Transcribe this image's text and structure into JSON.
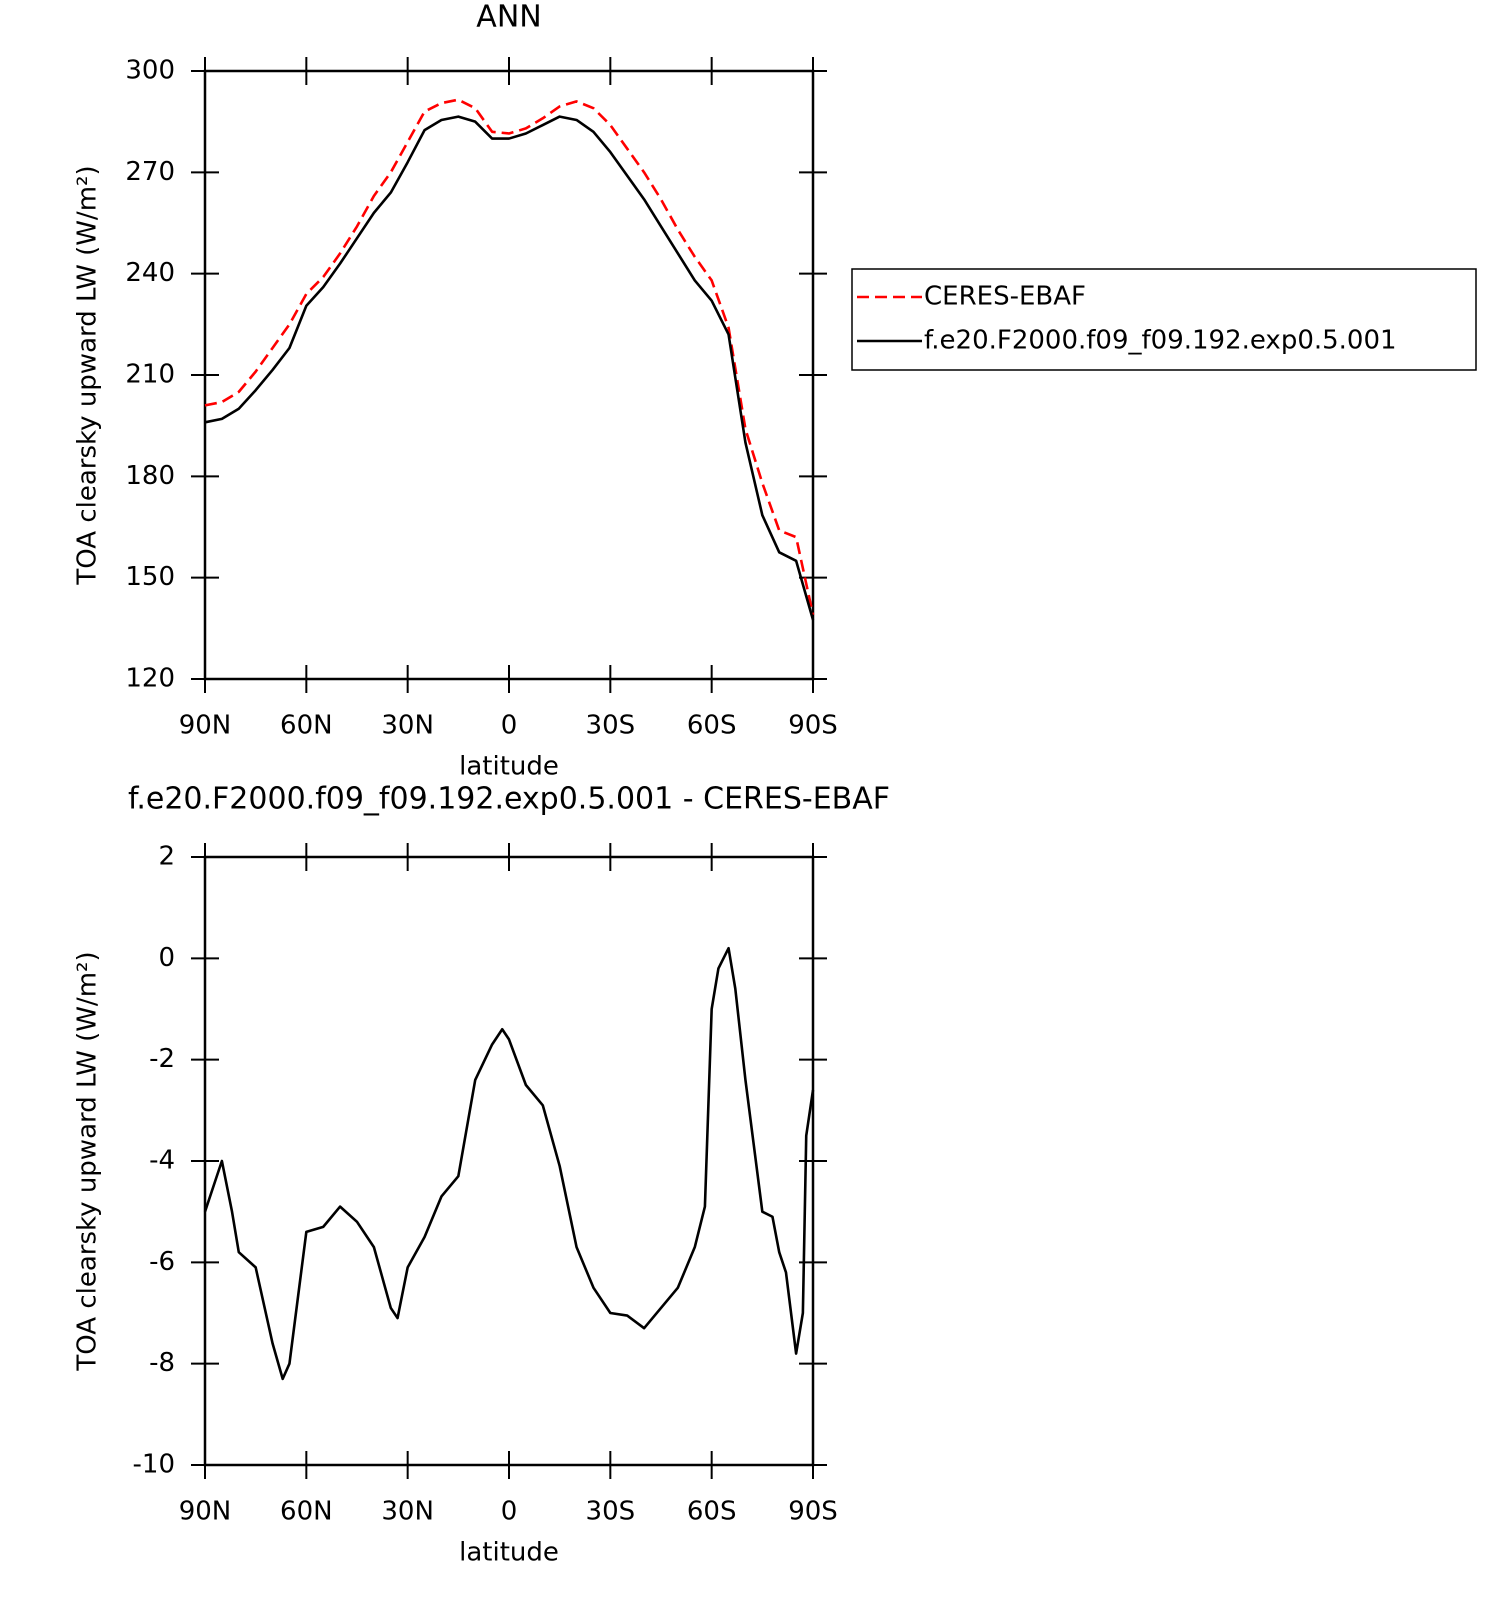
{
  "chart_data": [
    {
      "type": "line",
      "title": "ANN",
      "xlabel": "latitude",
      "ylabel": "TOA clearsky upward LW (W/m²)",
      "x": [
        90,
        85,
        80,
        75,
        70,
        65,
        60,
        55,
        50,
        45,
        40,
        35,
        30,
        25,
        20,
        15,
        10,
        5,
        0,
        -5,
        -10,
        -15,
        -20,
        -25,
        -30,
        -35,
        -40,
        -45,
        -50,
        -55,
        -60,
        -65,
        -70,
        -75,
        -80,
        -85,
        -90
      ],
      "series": [
        {
          "name": "CERES-EBAF",
          "color": "#ff0000",
          "line_style": "dashed",
          "values": [
            201,
            202,
            205,
            211,
            218,
            225,
            234,
            239,
            246,
            254,
            263,
            270,
            279,
            288,
            290.5,
            291.5,
            289,
            282,
            281.5,
            283,
            286,
            289.5,
            291,
            289,
            284,
            277,
            270,
            262,
            253,
            245,
            238,
            224,
            194,
            178,
            164,
            162,
            139
          ]
        },
        {
          "name": "f.e20.F2000.f09_f09.192.exp0.5.001",
          "color": "#000000",
          "line_style": "solid",
          "values": [
            196,
            197,
            200,
            205.5,
            211.5,
            218,
            230.5,
            236,
            243,
            250.5,
            258,
            264,
            273,
            282.5,
            285.5,
            286.5,
            285,
            280,
            280,
            281.5,
            284,
            286.5,
            285.5,
            282,
            276,
            269,
            262,
            254,
            246,
            238,
            232,
            222,
            190,
            168.5,
            157.5,
            155,
            137.5
          ]
        }
      ],
      "xlim": [
        90,
        -90
      ],
      "xticks": [
        {
          "value": 90,
          "label": "90N"
        },
        {
          "value": 60,
          "label": "60N"
        },
        {
          "value": 30,
          "label": "30N"
        },
        0,
        {
          "value": -30,
          "label": "30S"
        },
        {
          "value": -60,
          "label": "60S"
        },
        {
          "value": -90,
          "label": "90S"
        }
      ],
      "ylim": [
        120,
        300
      ],
      "yticks": [
        120,
        150,
        180,
        210,
        240,
        270,
        300
      ],
      "grid": false,
      "legend": "right"
    },
    {
      "type": "line",
      "title": "f.e20.F2000.f09_f09.192.exp0.5.001 - CERES-EBAF",
      "xlabel": "latitude",
      "ylabel": "TOA clearsky upward LW (W/m²)",
      "x": [
        90,
        87,
        85,
        82,
        80,
        75,
        70,
        67,
        65,
        60,
        55,
        50,
        45,
        40,
        35,
        33,
        30,
        25,
        20,
        15,
        10,
        5,
        2,
        0,
        -5,
        -10,
        -15,
        -20,
        -25,
        -30,
        -35,
        -40,
        -45,
        -50,
        -55,
        -58,
        -60,
        -62,
        -65,
        -67,
        -70,
        -75,
        -78,
        -80,
        -82,
        -85,
        -87,
        -88,
        -90
      ],
      "series": [
        {
          "color": "#000000",
          "line_style": "solid",
          "values": [
            -5.0,
            -4.4,
            -4.0,
            -5.0,
            -5.8,
            -6.1,
            -7.6,
            -8.3,
            -8.0,
            -5.4,
            -5.3,
            -4.9,
            -5.2,
            -5.7,
            -6.9,
            -7.1,
            -6.1,
            -5.5,
            -4.7,
            -4.3,
            -2.4,
            -1.7,
            -1.4,
            -1.6,
            -2.5,
            -2.9,
            -4.1,
            -5.7,
            -6.5,
            -7.0,
            -7.05,
            -7.3,
            -6.9,
            -6.5,
            -5.7,
            -4.9,
            -1.0,
            -0.2,
            0.2,
            -0.6,
            -2.4,
            -5.0,
            -5.1,
            -5.8,
            -6.2,
            -7.8,
            -7.0,
            -3.5,
            -2.6
          ]
        }
      ],
      "xlim": [
        90,
        -90
      ],
      "xticks": [
        {
          "value": 90,
          "label": "90N"
        },
        {
          "value": 60,
          "label": "60N"
        },
        {
          "value": 30,
          "label": "30N"
        },
        0,
        {
          "value": -30,
          "label": "30S"
        },
        {
          "value": -60,
          "label": "60S"
        },
        {
          "value": -90,
          "label": "90S"
        }
      ],
      "ylim": [
        -10,
        2
      ],
      "yticks": [
        -10,
        -8,
        -6,
        -4,
        -2,
        0,
        2
      ],
      "grid": false
    }
  ]
}
